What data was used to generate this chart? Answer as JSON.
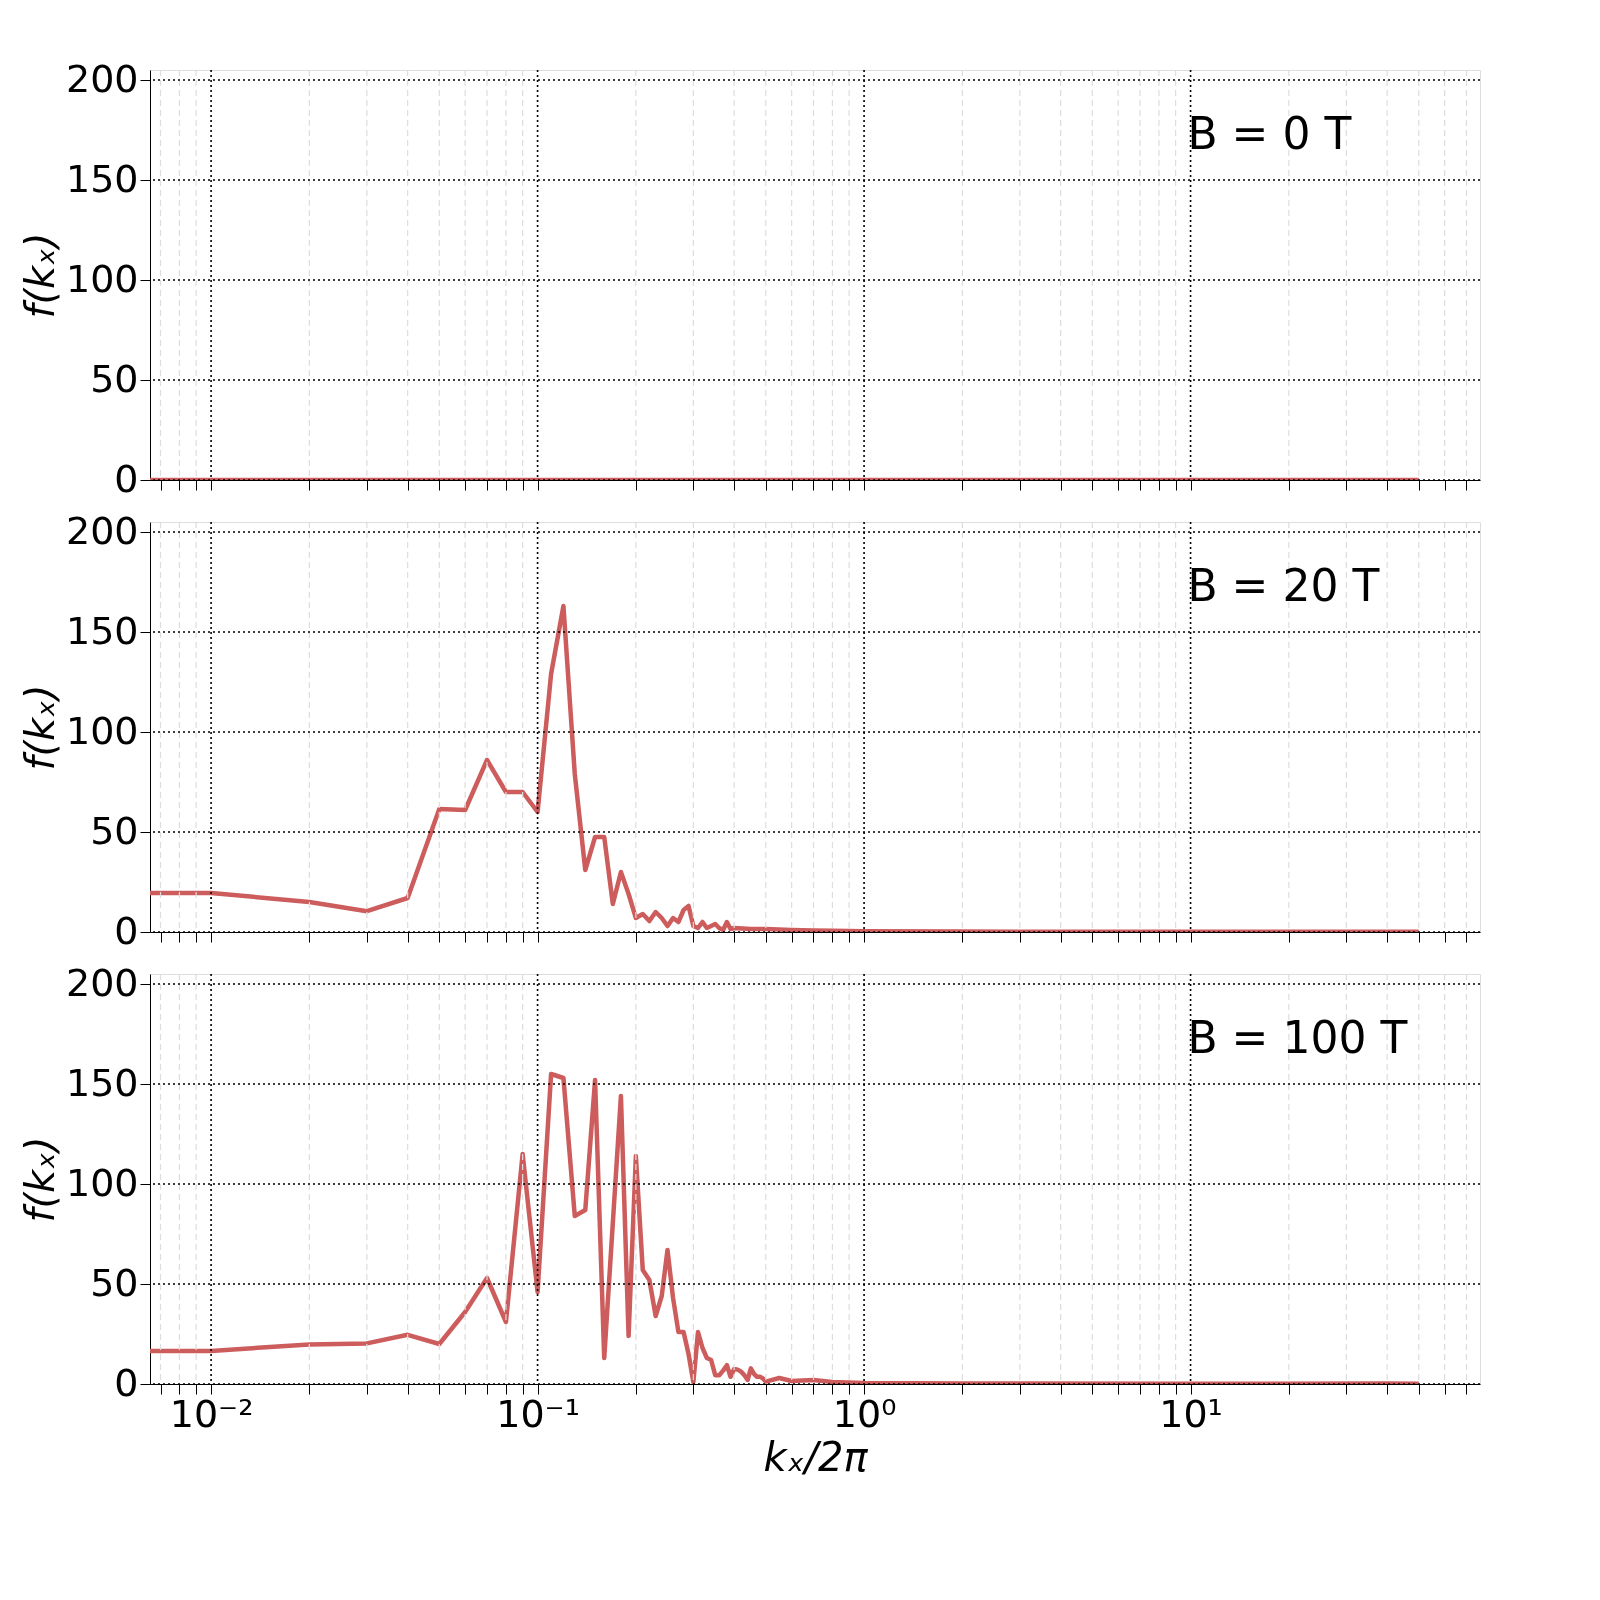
{
  "chart_data": [
    {
      "type": "line",
      "ylabel": "f(kₓ)",
      "log": "x",
      "grid": true,
      "tick_labels": "y",
      "xlim": [
        0.0065,
        77
      ],
      "ylim": [
        0,
        205
      ],
      "xticks": [
        {
          "value": 0.01,
          "label": null
        },
        {
          "value": 0.1,
          "label": null
        },
        {
          "value": 1,
          "label": null
        },
        {
          "value": 10,
          "label": null
        },
        {
          "value": 0.007,
          "label": null
        },
        {
          "value": 0.008,
          "label": null
        },
        {
          "value": 0.009,
          "label": null
        },
        {
          "value": 0.02,
          "label": null
        },
        {
          "value": 0.03,
          "label": null
        },
        {
          "value": 0.04,
          "label": null
        },
        {
          "value": 0.05,
          "label": null
        },
        {
          "value": 0.06,
          "label": null
        },
        {
          "value": 0.07,
          "label": null
        },
        {
          "value": 0.08,
          "label": null
        },
        {
          "value": 0.09,
          "label": null
        },
        {
          "value": 0.2,
          "label": null
        },
        {
          "value": 0.3,
          "label": null
        },
        {
          "value": 0.4,
          "label": null
        },
        {
          "value": 0.5,
          "label": null
        },
        {
          "value": 0.6,
          "label": null
        },
        {
          "value": 0.7,
          "label": null
        },
        {
          "value": 0.8,
          "label": null
        },
        {
          "value": 0.9,
          "label": null
        },
        {
          "value": 2,
          "label": null
        },
        {
          "value": 3,
          "label": null
        },
        {
          "value": 4,
          "label": null
        },
        {
          "value": 5,
          "label": null
        },
        {
          "value": 6,
          "label": null
        },
        {
          "value": 7,
          "label": null
        },
        {
          "value": 8,
          "label": null
        },
        {
          "value": 9,
          "label": null
        },
        {
          "value": 20,
          "label": null
        },
        {
          "value": 30,
          "label": null
        },
        {
          "value": 40,
          "label": null
        },
        {
          "value": 50,
          "label": null
        },
        {
          "value": 60,
          "label": null
        },
        {
          "value": 70,
          "label": null
        }
      ],
      "yticks": [
        0,
        50,
        100,
        150,
        200
      ],
      "annotations": [
        "B = 0 T"
      ],
      "series": [
        {
          "color": "#cd5c5c",
          "x": [
            0.0065,
            0.01,
            0.1,
            1,
            10,
            50
          ],
          "values": [
            0,
            0,
            0,
            0,
            0,
            0
          ]
        }
      ]
    },
    {
      "type": "line",
      "ylabel": "f(kₓ)",
      "log": "x",
      "grid": true,
      "tick_labels": "y",
      "xlim": [
        0.0065,
        77
      ],
      "ylim": [
        0,
        205
      ],
      "xticks": [
        {
          "value": 0.01,
          "label": null
        },
        {
          "value": 0.1,
          "label": null
        },
        {
          "value": 1,
          "label": null
        },
        {
          "value": 10,
          "label": null
        },
        {
          "value": 0.007,
          "label": null
        },
        {
          "value": 0.008,
          "label": null
        },
        {
          "value": 0.009,
          "label": null
        },
        {
          "value": 0.02,
          "label": null
        },
        {
          "value": 0.03,
          "label": null
        },
        {
          "value": 0.04,
          "label": null
        },
        {
          "value": 0.05,
          "label": null
        },
        {
          "value": 0.06,
          "label": null
        },
        {
          "value": 0.07,
          "label": null
        },
        {
          "value": 0.08,
          "label": null
        },
        {
          "value": 0.09,
          "label": null
        },
        {
          "value": 0.2,
          "label": null
        },
        {
          "value": 0.3,
          "label": null
        },
        {
          "value": 0.4,
          "label": null
        },
        {
          "value": 0.5,
          "label": null
        },
        {
          "value": 0.6,
          "label": null
        },
        {
          "value": 0.7,
          "label": null
        },
        {
          "value": 0.8,
          "label": null
        },
        {
          "value": 0.9,
          "label": null
        },
        {
          "value": 2,
          "label": null
        },
        {
          "value": 3,
          "label": null
        },
        {
          "value": 4,
          "label": null
        },
        {
          "value": 5,
          "label": null
        },
        {
          "value": 6,
          "label": null
        },
        {
          "value": 7,
          "label": null
        },
        {
          "value": 8,
          "label": null
        },
        {
          "value": 9,
          "label": null
        },
        {
          "value": 20,
          "label": null
        },
        {
          "value": 30,
          "label": null
        },
        {
          "value": 40,
          "label": null
        },
        {
          "value": 50,
          "label": null
        },
        {
          "value": 60,
          "label": null
        },
        {
          "value": 70,
          "label": null
        }
      ],
      "yticks": [
        0,
        50,
        100,
        150,
        200
      ],
      "annotations": [
        "B = 20 T"
      ],
      "series": [
        {
          "color": "#cd5c5c",
          "x": [
            0.0065,
            0.01,
            0.02,
            0.03,
            0.04,
            0.05,
            0.06,
            0.07,
            0.08,
            0.09,
            0.1,
            0.11,
            0.12,
            0.13,
            0.14,
            0.15,
            0.16,
            0.17,
            0.18,
            0.19,
            0.2,
            0.21,
            0.22,
            0.23,
            0.24,
            0.25,
            0.26,
            0.27,
            0.28,
            0.29,
            0.3,
            0.31,
            0.32,
            0.33,
            0.34,
            0.35,
            0.36,
            0.37,
            0.38,
            0.39,
            0.4,
            0.45,
            0.5,
            0.6,
            0.7,
            0.8,
            1,
            2,
            5,
            10,
            50
          ],
          "values": [
            19.5,
            19.5,
            15,
            10.4,
            17,
            61.5,
            61,
            86,
            70,
            70,
            60,
            129,
            163,
            79,
            31,
            47.5,
            47.5,
            14,
            30,
            19,
            7,
            9,
            5.5,
            10,
            7,
            3,
            7,
            5,
            11,
            13,
            3,
            2,
            5,
            2,
            3,
            4,
            2,
            1,
            5,
            1.5,
            2,
            1.5,
            1.5,
            1,
            0.8,
            0.6,
            0.4,
            0.2,
            0.1,
            0.1,
            0.1
          ]
        }
      ]
    },
    {
      "type": "line",
      "ylabel": "f(kₓ)",
      "xlabel": "kₓ/2π",
      "log": "x",
      "grid": true,
      "xlim": [
        0.0065,
        77
      ],
      "ylim": [
        0,
        205
      ],
      "xticks": [
        {
          "value": 0.01,
          "label": "10⁻²"
        },
        {
          "value": 0.1,
          "label": "10⁻¹"
        },
        {
          "value": 1,
          "label": "10⁰"
        },
        {
          "value": 10,
          "label": "10¹"
        },
        {
          "value": 0.007,
          "label": null
        },
        {
          "value": 0.008,
          "label": null
        },
        {
          "value": 0.009,
          "label": null
        },
        {
          "value": 0.02,
          "label": null
        },
        {
          "value": 0.03,
          "label": null
        },
        {
          "value": 0.04,
          "label": null
        },
        {
          "value": 0.05,
          "label": null
        },
        {
          "value": 0.06,
          "label": null
        },
        {
          "value": 0.07,
          "label": null
        },
        {
          "value": 0.08,
          "label": null
        },
        {
          "value": 0.09,
          "label": null
        },
        {
          "value": 0.2,
          "label": null
        },
        {
          "value": 0.3,
          "label": null
        },
        {
          "value": 0.4,
          "label": null
        },
        {
          "value": 0.5,
          "label": null
        },
        {
          "value": 0.6,
          "label": null
        },
        {
          "value": 0.7,
          "label": null
        },
        {
          "value": 0.8,
          "label": null
        },
        {
          "value": 0.9,
          "label": null
        },
        {
          "value": 2,
          "label": null
        },
        {
          "value": 3,
          "label": null
        },
        {
          "value": 4,
          "label": null
        },
        {
          "value": 5,
          "label": null
        },
        {
          "value": 6,
          "label": null
        },
        {
          "value": 7,
          "label": null
        },
        {
          "value": 8,
          "label": null
        },
        {
          "value": 9,
          "label": null
        },
        {
          "value": 20,
          "label": null
        },
        {
          "value": 30,
          "label": null
        },
        {
          "value": 40,
          "label": null
        },
        {
          "value": 50,
          "label": null
        },
        {
          "value": 60,
          "label": null
        },
        {
          "value": 70,
          "label": null
        }
      ],
      "yticks": [
        0,
        50,
        100,
        150,
        200
      ],
      "annotations": [
        "B = 100 T"
      ],
      "series": [
        {
          "color": "#cd5c5c",
          "x": [
            0.0065,
            0.01,
            0.02,
            0.03,
            0.04,
            0.05,
            0.06,
            0.07,
            0.08,
            0.09,
            0.1,
            0.11,
            0.12,
            0.13,
            0.14,
            0.15,
            0.16,
            0.18,
            0.19,
            0.2,
            0.21,
            0.22,
            0.23,
            0.24,
            0.25,
            0.26,
            0.27,
            0.28,
            0.29,
            0.3,
            0.31,
            0.32,
            0.33,
            0.34,
            0.35,
            0.36,
            0.37,
            0.38,
            0.39,
            0.4,
            0.41,
            0.42,
            0.43,
            0.44,
            0.45,
            0.46,
            0.47,
            0.48,
            0.49,
            0.5,
            0.55,
            0.6,
            0.7,
            0.8,
            1,
            2,
            10,
            40,
            50
          ],
          "values": [
            16.5,
            16.5,
            19.8,
            20.3,
            24.6,
            20,
            36,
            53,
            31,
            115,
            46,
            155,
            153,
            84,
            87,
            152,
            13,
            144,
            24,
            114,
            57,
            52,
            34,
            44,
            67,
            43,
            26,
            26,
            15,
            1,
            26,
            18,
            13,
            12,
            4.4,
            4.4,
            6.7,
            9.4,
            3.6,
            7.5,
            7.2,
            6.2,
            4.4,
            2,
            7.8,
            5.1,
            3.6,
            3.6,
            2.8,
            1.2,
            3,
            1.5,
            2,
            1,
            0.5,
            0.3,
            0.1,
            0.3,
            0.1
          ]
        }
      ]
    }
  ]
}
